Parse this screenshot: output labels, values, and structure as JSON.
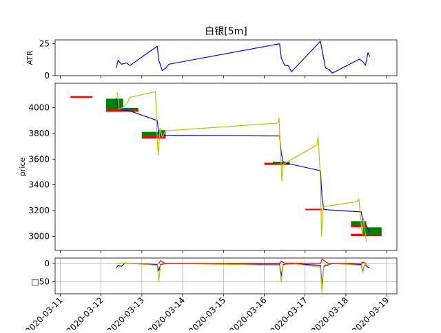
{
  "chart_data": [
    {
      "panel": "atr",
      "type": "line",
      "title": "白银[5m]",
      "ylabel": "ATR",
      "ylim": [
        0,
        28
      ],
      "yticks": [
        0,
        25
      ],
      "x_axis_type": "date",
      "xlim": [
        "2020-03-10 21:00",
        "2020-03-19 06:00"
      ],
      "series": [
        {
          "name": "",
          "color": "#0000ff",
          "points": [
            [
              "2020-03-12 09:00",
              6
            ],
            [
              "2020-03-12 10:00",
              12
            ],
            [
              "2020-03-12 12:00",
              9
            ],
            [
              "2020-03-12 15:00",
              10
            ],
            [
              "2020-03-12 17:00",
              8
            ],
            [
              "2020-03-13 09:00",
              23
            ],
            [
              "2020-03-13 10:00",
              12
            ],
            [
              "2020-03-13 12:00",
              4
            ],
            [
              "2020-03-13 14:00",
              6
            ],
            [
              "2020-03-13 16:00",
              9
            ],
            [
              "2020-03-16 09:00",
              25
            ],
            [
              "2020-03-16 10:00",
              14
            ],
            [
              "2020-03-16 12:00",
              8
            ],
            [
              "2020-03-16 14:00",
              8
            ],
            [
              "2020-03-16 16:00",
              3
            ],
            [
              "2020-03-17 09:00",
              27
            ],
            [
              "2020-03-17 10:00",
              20
            ],
            [
              "2020-03-17 12:00",
              6
            ],
            [
              "2020-03-17 14:00",
              5
            ],
            [
              "2020-03-17 16:00",
              2
            ],
            [
              "2020-03-18 08:00",
              13
            ],
            [
              "2020-03-18 10:00",
              11
            ],
            [
              "2020-03-18 11:30",
              8
            ],
            [
              "2020-03-18 13:00",
              18
            ],
            [
              "2020-03-18 14:00",
              15
            ]
          ]
        }
      ],
      "grid": false
    },
    {
      "panel": "price",
      "type": "line",
      "ylabel": "price",
      "ylim": [
        2890,
        4190
      ],
      "yticks": [
        3000,
        3200,
        3400,
        3600,
        3800,
        4000
      ],
      "x_axis_type": "date",
      "xlim": [
        "2020-03-10 21:00",
        "2020-03-19 06:00"
      ],
      "series": [
        {
          "name": "",
          "color": "#0000ff",
          "points": [
            [
              "2020-03-12 09:00",
              4075
            ],
            [
              "2020-03-12 10:00",
              4000
            ],
            [
              "2020-03-12 11:00",
              3985
            ],
            [
              "2020-03-12 13:00",
              3980
            ],
            [
              "2020-03-12 15:00",
              3980
            ],
            [
              "2020-03-12 17:00",
              3975
            ],
            [
              "2020-03-13 09:00",
              3900
            ],
            [
              "2020-03-13 10:00",
              3800
            ],
            [
              "2020-03-13 12:00",
              3785
            ],
            [
              "2020-03-13 15:00",
              3785
            ],
            [
              "2020-03-16 09:00",
              3780
            ],
            [
              "2020-03-16 10:00",
              3650
            ],
            [
              "2020-03-16 11:00",
              3580
            ],
            [
              "2020-03-16 14:00",
              3565
            ],
            [
              "2020-03-16 16:00",
              3560
            ],
            [
              "2020-03-17 09:00",
              3510
            ],
            [
              "2020-03-17 10:00",
              3300
            ],
            [
              "2020-03-17 11:00",
              3210
            ],
            [
              "2020-03-17 14:00",
              3205
            ],
            [
              "2020-03-18 09:00",
              3190
            ],
            [
              "2020-03-18 10:00",
              3120
            ],
            [
              "2020-03-18 11:00",
              3100
            ],
            [
              "2020-03-18 13:00",
              3060
            ],
            [
              "2020-03-18 14:00",
              3030
            ]
          ]
        },
        {
          "name": "",
          "color": "#bfbf00",
          "points": [
            [
              "2020-03-12 09:00",
              4110
            ],
            [
              "2020-03-12 09:40",
              4115
            ],
            [
              "2020-03-12 10:30",
              3990
            ],
            [
              "2020-03-12 12:00",
              3995
            ],
            [
              "2020-03-12 13:30",
              4010
            ],
            [
              "2020-03-12 15:30",
              4040
            ],
            [
              "2020-03-12 17:00",
              4080
            ],
            [
              "2020-03-13 08:00",
              4125
            ],
            [
              "2020-03-13 09:00",
              3760
            ],
            [
              "2020-03-13 09:40",
              3630
            ],
            [
              "2020-03-13 10:40",
              3840
            ],
            [
              "2020-03-13 12:00",
              3770
            ],
            [
              "2020-03-13 14:00",
              3820
            ],
            [
              "2020-03-16 08:00",
              3880
            ],
            [
              "2020-03-16 08:40",
              3920
            ],
            [
              "2020-03-16 09:40",
              3640
            ],
            [
              "2020-03-16 10:20",
              3430
            ],
            [
              "2020-03-16 11:00",
              3560
            ],
            [
              "2020-03-17 07:00",
              3710
            ],
            [
              "2020-03-17 07:40",
              3780
            ],
            [
              "2020-03-17 09:00",
              3450
            ],
            [
              "2020-03-17 09:40",
              3000
            ],
            [
              "2020-03-17 10:40",
              3230
            ],
            [
              "2020-03-18 07:00",
              3270
            ],
            [
              "2020-03-18 07:40",
              3290
            ],
            [
              "2020-03-18 09:00",
              3100
            ],
            [
              "2020-03-18 09:40",
              3010
            ],
            [
              "2020-03-18 10:20",
              3140
            ],
            [
              "2020-03-18 12:00",
              2960
            ]
          ]
        }
      ],
      "blocks": [
        {
          "color": "#ff0000",
          "from": "2020-03-11 06:00",
          "to": "2020-03-11 19:00",
          "low": 4076,
          "high": 4090
        },
        {
          "color": "#ff0000",
          "from": "2020-03-12 03:00",
          "to": "2020-03-12 13:00",
          "low": 3968,
          "high": 3998
        },
        {
          "color": "#008000",
          "from": "2020-03-12 03:00",
          "to": "2020-03-12 13:00",
          "low": 3988,
          "high": 4070
        },
        {
          "color": "#ff0000",
          "from": "2020-03-12 13:00",
          "to": "2020-03-12 22:00",
          "low": 3968,
          "high": 3982
        },
        {
          "color": "#008000",
          "from": "2020-03-12 13:00",
          "to": "2020-03-12 22:00",
          "low": 3980,
          "high": 3998
        },
        {
          "color": "#ff0000",
          "from": "2020-03-13 00:00",
          "to": "2020-03-13 14:00",
          "low": 3760,
          "high": 3790
        },
        {
          "color": "#008000",
          "from": "2020-03-13 00:00",
          "to": "2020-03-13 14:00",
          "low": 3778,
          "high": 3812
        },
        {
          "color": "#008000",
          "from": "2020-03-13 10:00",
          "to": "2020-03-13 14:00",
          "low": 3790,
          "high": 3825
        },
        {
          "color": "#ff0000",
          "from": "2020-03-16 00:00",
          "to": "2020-03-16 15:00",
          "low": 3555,
          "high": 3572
        },
        {
          "color": "#008000",
          "from": "2020-03-16 05:00",
          "to": "2020-03-16 15:00",
          "low": 3565,
          "high": 3580
        },
        {
          "color": "#ff0000",
          "from": "2020-03-17 00:00",
          "to": "2020-03-17 10:00",
          "low": 3204,
          "high": 3214
        },
        {
          "color": "#ff0000",
          "from": "2020-03-18 03:00",
          "to": "2020-03-18 21:00",
          "low": 3002,
          "high": 3020
        },
        {
          "color": "#ff0000",
          "from": "2020-03-18 03:00",
          "to": "2020-03-18 12:00",
          "low": 3070,
          "high": 3090
        },
        {
          "color": "#008000",
          "from": "2020-03-18 03:00",
          "to": "2020-03-18 12:00",
          "low": 3085,
          "high": 3118
        },
        {
          "color": "#008000",
          "from": "2020-03-18 10:00",
          "to": "2020-03-18 21:00",
          "low": 3010,
          "high": 3070
        }
      ],
      "grid": false
    },
    {
      "panel": "oscillator",
      "type": "line",
      "ylabel": "",
      "ylim": [
        -83,
        15
      ],
      "yticks": [
        0,
        -50
      ],
      "ytick_labels": [
        "0",
        "□50"
      ],
      "x_axis_type": "date",
      "xlim": [
        "2020-03-10 21:00",
        "2020-03-19 06:00"
      ],
      "xtick_labels": [
        "2020-03-11",
        "2020-03-12",
        "2020-03-13",
        "2020-03-14",
        "2020-03-15",
        "2020-03-16",
        "2020-03-17",
        "2020-03-18",
        "2020-03-19"
      ],
      "series": [
        {
          "name": "",
          "color": "#0000ff",
          "points": [
            [
              "2020-03-12 09:00",
              -12
            ],
            [
              "2020-03-12 10:00",
              -5
            ],
            [
              "2020-03-12 12:00",
              -8
            ],
            [
              "2020-03-12 14:00",
              1
            ],
            [
              "2020-03-13 09:00",
              -3
            ],
            [
              "2020-03-13 10:00",
              -20
            ],
            [
              "2020-03-13 11:00",
              -3
            ],
            [
              "2020-03-13 15:00",
              0
            ],
            [
              "2020-03-16 09:00",
              -2
            ],
            [
              "2020-03-16 10:00",
              -35
            ],
            [
              "2020-03-16 11:00",
              -3
            ],
            [
              "2020-03-16 16:00",
              -1
            ],
            [
              "2020-03-17 09:00",
              -5
            ],
            [
              "2020-03-17 10:00",
              -62
            ],
            [
              "2020-03-17 11:00",
              -8
            ],
            [
              "2020-03-17 16:00",
              0
            ],
            [
              "2020-03-18 09:00",
              -3
            ],
            [
              "2020-03-18 10:00",
              -22
            ],
            [
              "2020-03-18 11:00",
              -3
            ],
            [
              "2020-03-18 13:00",
              -10
            ],
            [
              "2020-03-18 14:00",
              -12
            ]
          ]
        },
        {
          "name": "",
          "color": "#bfbf00",
          "points": [
            [
              "2020-03-12 09:00",
              0
            ],
            [
              "2020-03-12 14:00",
              1
            ],
            [
              "2020-03-13 09:00",
              -5
            ],
            [
              "2020-03-13 10:00",
              -48
            ],
            [
              "2020-03-13 11:00",
              -5
            ],
            [
              "2020-03-13 15:00",
              0
            ],
            [
              "2020-03-16 09:00",
              -5
            ],
            [
              "2020-03-16 10:00",
              -50
            ],
            [
              "2020-03-16 11:00",
              -5
            ],
            [
              "2020-03-16 16:00",
              0
            ],
            [
              "2020-03-17 09:00",
              -10
            ],
            [
              "2020-03-17 10:00",
              -80
            ],
            [
              "2020-03-17 11:00",
              -5
            ],
            [
              "2020-03-17 16:00",
              0
            ],
            [
              "2020-03-18 09:00",
              -5
            ],
            [
              "2020-03-18 10:00",
              -25
            ],
            [
              "2020-03-18 11:00",
              -3
            ],
            [
              "2020-03-18 14:00",
              -5
            ]
          ]
        },
        {
          "name": "",
          "color": "#ff0000",
          "points": [
            [
              "2020-03-13 10:00",
              0
            ],
            [
              "2020-03-13 11:00",
              8
            ],
            [
              "2020-03-13 13:00",
              2
            ],
            [
              "2020-03-13 14:00",
              0
            ],
            [
              "2020-03-16 09:00",
              0
            ],
            [
              "2020-03-16 10:00",
              6
            ],
            [
              "2020-03-16 12:00",
              1
            ],
            [
              "2020-03-17 09:00",
              0
            ],
            [
              "2020-03-17 10:00",
              12
            ],
            [
              "2020-03-17 12:00",
              5
            ],
            [
              "2020-03-17 14:00",
              0
            ],
            [
              "2020-03-18 09:00",
              0
            ],
            [
              "2020-03-18 10:00",
              4
            ],
            [
              "2020-03-18 12:00",
              0
            ]
          ]
        }
      ],
      "grid": true
    }
  ]
}
